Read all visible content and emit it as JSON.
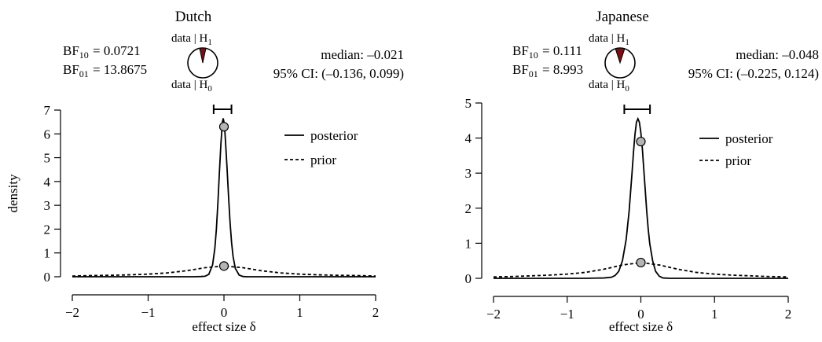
{
  "chart_data": [
    {
      "type": "line",
      "title": "Dutch",
      "xlabel": "effect size δ",
      "ylabel": "density",
      "xlim": [
        -2,
        2
      ],
      "ylim": [
        0,
        7
      ],
      "xticks": [
        -2,
        -1,
        0,
        1,
        2
      ],
      "xtick_labels": [
        "−2",
        "−1",
        "0",
        "1",
        "2"
      ],
      "yticks": [
        0,
        1,
        2,
        3,
        4,
        5,
        6,
        7
      ],
      "ytick_labels": [
        "0",
        "1",
        "2",
        "3",
        "4",
        "5",
        "6",
        "7"
      ],
      "legend_position": "top-right",
      "bf10_label": "BF",
      "bf10_sub": "10",
      "bf10_value": "= 0.0721",
      "bf01_label": "BF",
      "bf01_sub": "01",
      "bf01_value": "= 13.8675",
      "pie_h1_label": "data | H",
      "pie_h1_sub": "1",
      "pie_h0_label": "data | H",
      "pie_h0_sub": "0",
      "pie_h1_fraction": 0.0673,
      "median_text": "median: –0.021",
      "ci_text": "95% CI: (–0.136, 0.099)",
      "ci": [
        -0.136,
        0.099
      ],
      "median": -0.021,
      "series": [
        {
          "name": "posterior",
          "style": "solid",
          "color": "#000000",
          "x": [
            -2,
            -1.5,
            -1,
            -0.75,
            -0.5,
            -0.4,
            -0.3,
            -0.25,
            -0.2,
            -0.15,
            -0.12,
            -0.1,
            -0.08,
            -0.06,
            -0.04,
            -0.02,
            -0.01,
            0,
            0.01,
            0.02,
            0.04,
            0.06,
            0.08,
            0.1,
            0.12,
            0.15,
            0.2,
            0.25,
            0.3,
            0.4,
            0.5,
            0.75,
            1,
            1.5,
            2
          ],
          "y": [
            0,
            0,
            0,
            0,
            0,
            0,
            0.01,
            0.02,
            0.1,
            0.5,
            1.2,
            2.0,
            3.1,
            4.4,
            5.6,
            6.5,
            6.65,
            6.5,
            6.2,
            5.7,
            4.6,
            3.4,
            2.3,
            1.45,
            0.85,
            0.35,
            0.07,
            0.01,
            0,
            0,
            0,
            0,
            0,
            0,
            0
          ]
        },
        {
          "name": "prior",
          "style": "dashed",
          "color": "#000000",
          "x": [
            -2,
            -1.75,
            -1.5,
            -1.25,
            -1,
            -0.75,
            -0.5,
            -0.25,
            0,
            0.25,
            0.5,
            0.75,
            1,
            1.25,
            1.5,
            1.75,
            2
          ],
          "y": [
            0.03,
            0.05,
            0.06,
            0.08,
            0.11,
            0.16,
            0.25,
            0.38,
            0.45,
            0.38,
            0.25,
            0.16,
            0.11,
            0.08,
            0.06,
            0.05,
            0.03
          ]
        }
      ],
      "points": [
        {
          "x": 0,
          "y": 6.3
        },
        {
          "x": 0,
          "y": 0.45
        }
      ]
    },
    {
      "type": "line",
      "title": "Japanese",
      "xlabel": "effect size δ",
      "ylabel": "",
      "xlim": [
        -2,
        2
      ],
      "ylim": [
        0,
        5
      ],
      "xticks": [
        -2,
        -1,
        0,
        1,
        2
      ],
      "xtick_labels": [
        "−2",
        "−1",
        "0",
        "1",
        "2"
      ],
      "yticks": [
        0,
        1,
        2,
        3,
        4,
        5
      ],
      "ytick_labels": [
        "0",
        "1",
        "2",
        "3",
        "4",
        "5"
      ],
      "legend_position": "top-right",
      "bf10_label": "BF",
      "bf10_sub": "10",
      "bf10_value": "= 0.111",
      "bf01_label": "BF",
      "bf01_sub": "01",
      "bf01_value": "= 8.993",
      "pie_h1_label": "data | H",
      "pie_h1_sub": "1",
      "pie_h0_label": "data | H",
      "pie_h0_sub": "0",
      "pie_h1_fraction": 0.0999,
      "median_text": "median: –0.048",
      "ci_text": "95% CI: (–0.225, 0.124)",
      "ci": [
        -0.225,
        0.124
      ],
      "median": -0.048,
      "series": [
        {
          "name": "posterior",
          "style": "solid",
          "color": "#000000",
          "x": [
            -2,
            -1.5,
            -1,
            -0.75,
            -0.5,
            -0.4,
            -0.35,
            -0.3,
            -0.25,
            -0.2,
            -0.16,
            -0.12,
            -0.1,
            -0.08,
            -0.06,
            -0.04,
            -0.02,
            0,
            0.02,
            0.04,
            0.06,
            0.08,
            0.1,
            0.12,
            0.16,
            0.2,
            0.25,
            0.3,
            0.4,
            0.5,
            0.75,
            1,
            1.5,
            2
          ],
          "y": [
            0,
            0,
            0,
            0,
            0.01,
            0.03,
            0.08,
            0.2,
            0.5,
            1.1,
            1.9,
            3.0,
            3.6,
            4.1,
            4.45,
            4.55,
            4.45,
            4.15,
            3.7,
            3.1,
            2.5,
            1.9,
            1.4,
            1.0,
            0.5,
            0.2,
            0.06,
            0.01,
            0,
            0,
            0,
            0,
            0,
            0
          ]
        },
        {
          "name": "prior",
          "style": "dashed",
          "color": "#000000",
          "x": [
            -2,
            -1.75,
            -1.5,
            -1.25,
            -1,
            -0.75,
            -0.5,
            -0.25,
            0,
            0.25,
            0.5,
            0.75,
            1,
            1.25,
            1.5,
            1.75,
            2
          ],
          "y": [
            0.04,
            0.05,
            0.07,
            0.09,
            0.12,
            0.17,
            0.26,
            0.38,
            0.45,
            0.38,
            0.26,
            0.17,
            0.12,
            0.09,
            0.07,
            0.05,
            0.04
          ]
        }
      ],
      "points": [
        {
          "x": 0,
          "y": 3.9
        },
        {
          "x": 0,
          "y": 0.45
        }
      ]
    }
  ],
  "colors": {
    "pie_fill": "#7a0f14",
    "point_fill": "#b4b4b4",
    "line": "#000000"
  }
}
